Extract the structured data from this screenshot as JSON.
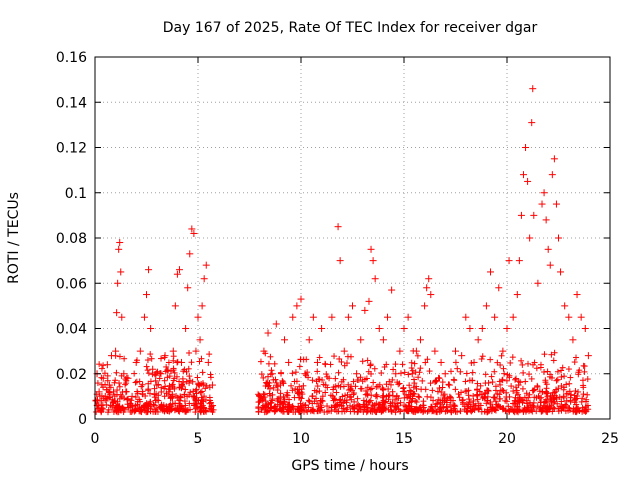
{
  "chart_data": {
    "type": "scatter",
    "title": "Day 167 of 2025, Rate Of TEC Index for receiver dgar",
    "xlabel": "GPS time / hours",
    "ylabel": "ROTI / TECUs",
    "xlim": [
      0,
      25
    ],
    "ylim": [
      0,
      0.16
    ],
    "xticks": [
      "0",
      "5",
      "10",
      "15",
      "20",
      "25"
    ],
    "yticks": [
      "0",
      "0.02",
      "0.04",
      "0.06",
      "0.08",
      "0.1",
      "0.12",
      "0.14",
      "0.16"
    ],
    "grid": true,
    "marker": "plus",
    "color": "#ff0000",
    "data_gap_hours": [
      5.8,
      7.9
    ],
    "series": [
      {
        "points": [
          [
            0.05,
            0.008
          ],
          [
            0.1,
            0.02
          ],
          [
            0.2,
            0.012
          ],
          [
            0.3,
            0.006
          ],
          [
            0.4,
            0.018
          ],
          [
            0.5,
            0.01
          ],
          [
            0.6,
            0.024
          ],
          [
            0.7,
            0.015
          ],
          [
            0.8,
            0.028
          ],
          [
            0.9,
            0.012
          ],
          [
            1.0,
            0.03
          ],
          [
            1.05,
            0.047
          ],
          [
            1.1,
            0.06
          ],
          [
            1.15,
            0.075
          ],
          [
            1.2,
            0.078
          ],
          [
            1.25,
            0.065
          ],
          [
            1.3,
            0.045
          ],
          [
            1.4,
            0.02
          ],
          [
            1.5,
            0.012
          ],
          [
            1.6,
            0.018
          ],
          [
            1.8,
            0.01
          ],
          [
            2.0,
            0.025
          ],
          [
            2.2,
            0.03
          ],
          [
            2.4,
            0.045
          ],
          [
            2.5,
            0.055
          ],
          [
            2.6,
            0.066
          ],
          [
            2.7,
            0.04
          ],
          [
            2.8,
            0.022
          ],
          [
            3.0,
            0.015
          ],
          [
            3.2,
            0.02
          ],
          [
            3.4,
            0.028
          ],
          [
            3.6,
            0.012
          ],
          [
            3.8,
            0.03
          ],
          [
            3.9,
            0.05
          ],
          [
            4.0,
            0.064
          ],
          [
            4.1,
            0.066
          ],
          [
            4.2,
            0.025
          ],
          [
            4.4,
            0.04
          ],
          [
            4.5,
            0.058
          ],
          [
            4.6,
            0.073
          ],
          [
            4.7,
            0.084
          ],
          [
            4.8,
            0.082
          ],
          [
            4.9,
            0.03
          ],
          [
            5.0,
            0.045
          ],
          [
            5.1,
            0.035
          ],
          [
            5.2,
            0.05
          ],
          [
            5.3,
            0.062
          ],
          [
            5.4,
            0.068
          ],
          [
            5.5,
            0.025
          ],
          [
            5.7,
            0.015
          ],
          [
            8.0,
            0.01
          ],
          [
            8.2,
            0.03
          ],
          [
            8.4,
            0.038
          ],
          [
            8.6,
            0.02
          ],
          [
            8.8,
            0.042
          ],
          [
            9.0,
            0.015
          ],
          [
            9.2,
            0.035
          ],
          [
            9.4,
            0.025
          ],
          [
            9.6,
            0.045
          ],
          [
            9.8,
            0.05
          ],
          [
            10.0,
            0.053
          ],
          [
            10.2,
            0.02
          ],
          [
            10.4,
            0.035
          ],
          [
            10.6,
            0.045
          ],
          [
            10.8,
            0.025
          ],
          [
            11.0,
            0.04
          ],
          [
            11.2,
            0.015
          ],
          [
            11.5,
            0.045
          ],
          [
            11.8,
            0.085
          ],
          [
            11.9,
            0.07
          ],
          [
            12.1,
            0.03
          ],
          [
            12.3,
            0.045
          ],
          [
            12.5,
            0.05
          ],
          [
            12.7,
            0.02
          ],
          [
            12.9,
            0.035
          ],
          [
            13.1,
            0.048
          ],
          [
            13.3,
            0.052
          ],
          [
            13.4,
            0.075
          ],
          [
            13.5,
            0.07
          ],
          [
            13.6,
            0.062
          ],
          [
            13.8,
            0.04
          ],
          [
            14.0,
            0.035
          ],
          [
            14.2,
            0.045
          ],
          [
            14.4,
            0.057
          ],
          [
            14.6,
            0.02
          ],
          [
            14.8,
            0.03
          ],
          [
            15.0,
            0.04
          ],
          [
            15.2,
            0.045
          ],
          [
            15.4,
            0.02
          ],
          [
            15.6,
            0.03
          ],
          [
            15.8,
            0.035
          ],
          [
            16.0,
            0.05
          ],
          [
            16.1,
            0.058
          ],
          [
            16.2,
            0.062
          ],
          [
            16.3,
            0.055
          ],
          [
            16.5,
            0.03
          ],
          [
            16.8,
            0.025
          ],
          [
            17.0,
            0.02
          ],
          [
            17.2,
            0.015
          ],
          [
            17.5,
            0.03
          ],
          [
            17.8,
            0.028
          ],
          [
            18.0,
            0.045
          ],
          [
            18.2,
            0.04
          ],
          [
            18.4,
            0.025
          ],
          [
            18.6,
            0.035
          ],
          [
            18.8,
            0.04
          ],
          [
            19.0,
            0.05
          ],
          [
            19.2,
            0.065
          ],
          [
            19.4,
            0.045
          ],
          [
            19.6,
            0.058
          ],
          [
            19.8,
            0.03
          ],
          [
            20.0,
            0.04
          ],
          [
            20.1,
            0.07
          ],
          [
            20.3,
            0.045
          ],
          [
            20.5,
            0.055
          ],
          [
            20.6,
            0.07
          ],
          [
            20.7,
            0.09
          ],
          [
            20.8,
            0.108
          ],
          [
            20.9,
            0.12
          ],
          [
            21.0,
            0.105
          ],
          [
            21.1,
            0.08
          ],
          [
            21.2,
            0.131
          ],
          [
            21.25,
            0.146
          ],
          [
            21.3,
            0.09
          ],
          [
            21.5,
            0.06
          ],
          [
            21.7,
            0.095
          ],
          [
            21.8,
            0.1
          ],
          [
            21.9,
            0.088
          ],
          [
            22.0,
            0.075
          ],
          [
            22.1,
            0.068
          ],
          [
            22.2,
            0.108
          ],
          [
            22.3,
            0.115
          ],
          [
            22.4,
            0.095
          ],
          [
            22.5,
            0.08
          ],
          [
            22.6,
            0.065
          ],
          [
            22.8,
            0.05
          ],
          [
            23.0,
            0.045
          ],
          [
            23.2,
            0.035
          ],
          [
            23.4,
            0.055
          ],
          [
            23.6,
            0.045
          ],
          [
            23.8,
            0.04
          ],
          [
            23.95,
            0.028
          ]
        ]
      }
    ]
  }
}
